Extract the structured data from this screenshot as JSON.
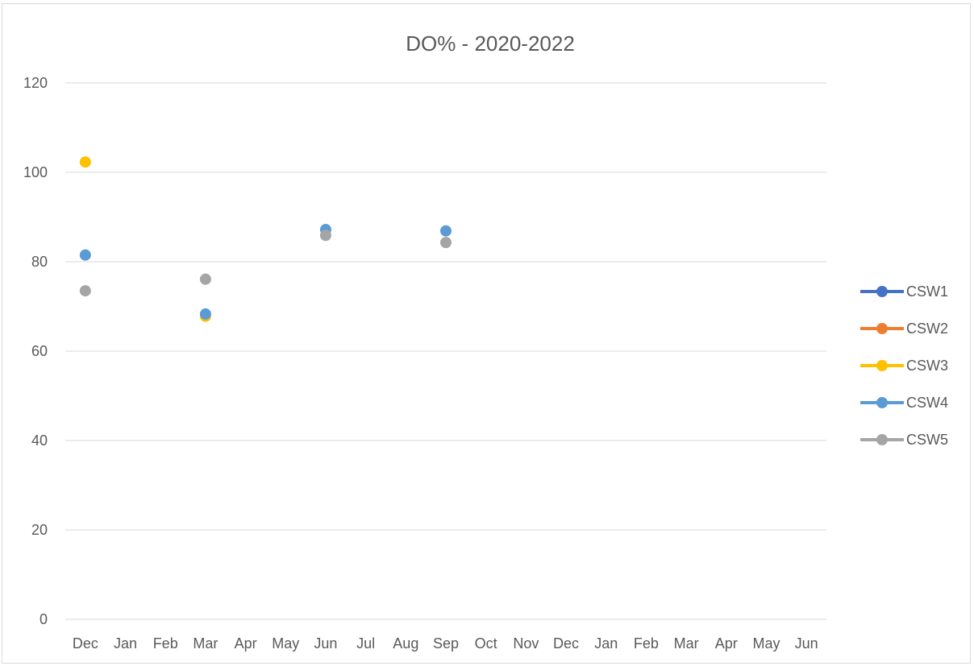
{
  "chart_data": {
    "type": "scatter",
    "title": "DO% -  2020-2022",
    "xlabel": "",
    "ylabel": "",
    "categories": [
      "Dec",
      "Jan",
      "Feb",
      "Mar",
      "Apr",
      "May",
      "Jun",
      "Jul",
      "Aug",
      "Sep",
      "Oct",
      "Nov",
      "Dec",
      "Jan",
      "Feb",
      "Mar",
      "Apr",
      "May",
      "Jun"
    ],
    "ylim": [
      0,
      120
    ],
    "yticks": [
      "0",
      "20",
      "40",
      "60",
      "80",
      "100",
      "120"
    ],
    "grid": true,
    "legend_position": "right",
    "series": [
      {
        "name": "CSW1",
        "color": "#4472C4",
        "values": [
          null,
          null,
          null,
          null,
          null,
          null,
          null,
          null,
          null,
          null,
          null,
          null,
          null,
          null,
          null,
          null,
          null,
          null,
          null
        ]
      },
      {
        "name": "CSW2",
        "color": "#ED7D31",
        "values": [
          null,
          null,
          null,
          null,
          null,
          null,
          null,
          null,
          null,
          null,
          null,
          null,
          null,
          null,
          null,
          null,
          null,
          null,
          null
        ]
      },
      {
        "name": "CSW3",
        "color": "#FFC000",
        "values": [
          102.3,
          null,
          null,
          67.8,
          null,
          null,
          null,
          null,
          null,
          null,
          null,
          null,
          null,
          null,
          null,
          null,
          null,
          null,
          null
        ]
      },
      {
        "name": "CSW4",
        "color": "#5B9BD5",
        "values": [
          81.5,
          null,
          null,
          68.3,
          null,
          null,
          87.2,
          null,
          null,
          86.9,
          null,
          null,
          null,
          null,
          null,
          null,
          null,
          null,
          null
        ]
      },
      {
        "name": "CSW5",
        "color": "#A5A5A5",
        "values": [
          73.5,
          null,
          null,
          76.1,
          null,
          null,
          85.9,
          null,
          null,
          84.3,
          null,
          null,
          null,
          null,
          null,
          null,
          null,
          null,
          null
        ]
      }
    ]
  }
}
